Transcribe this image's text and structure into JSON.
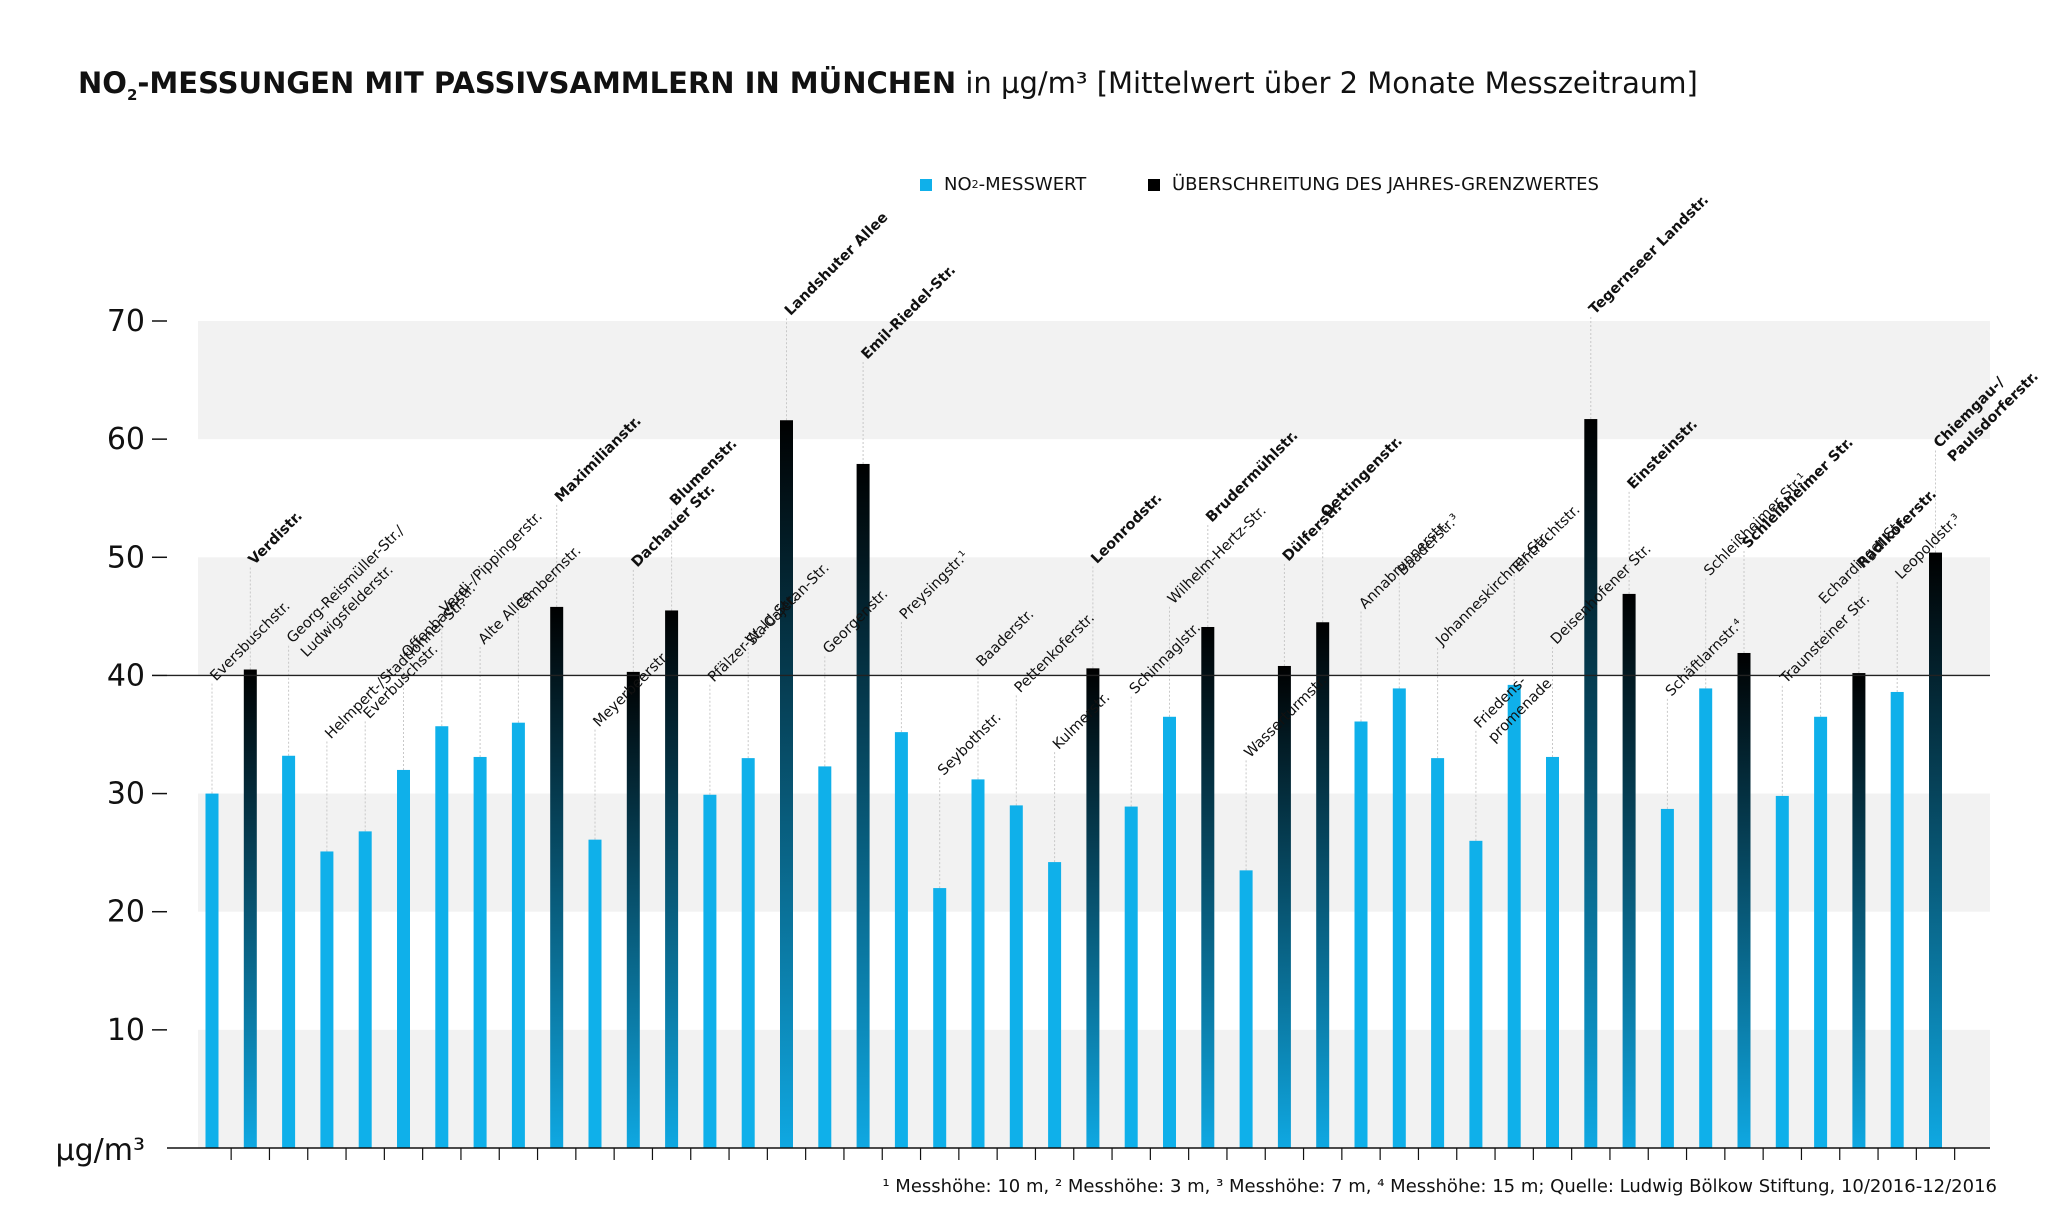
{
  "title": {
    "bold_prefix": "NO",
    "bold_sub": "2",
    "bold_suffix": "-MESSUNGEN MIT PASSIVSAMMLERN IN MÜNCHEN",
    "normal": " in µg/m³ [Mittelwert über 2 Monate Messzeitraum]"
  },
  "legend": {
    "item1_prefix": "NO",
    "item1_sub": "2",
    "item1_suffix": "-MESSWERT",
    "item2": "ÜBERSCHREITUNG DES JAHRES-GRENZWERTES"
  },
  "footnote": "¹ Messhöhe: 10 m, ² Messhöhe: 3 m, ³ Messhöhe: 7 m, ⁴ Messhöhe: 15 m; Quelle: Ludwig Bölkow Stiftung, 10/2016-12/2016",
  "colors": {
    "normal": "#0fb0ea",
    "exceed_top": "#000000",
    "exceed_bottom": "#0fa8e2",
    "grid_band": "#f2f2f2",
    "guide": "#c8c8c8"
  },
  "chart_data": {
    "type": "bar",
    "ylim": [
      0,
      70
    ],
    "yticks": [
      10,
      20,
      30,
      40,
      50,
      60,
      70
    ],
    "ylabel": "µg/m³",
    "limit_line": 40,
    "categories": [
      {
        "label": "Eversbuschstr.",
        "value": 30.0,
        "bold": false,
        "exceed": false
      },
      {
        "label": "Verdistr.",
        "value": 40.5,
        "bold": true,
        "exceed": true
      },
      {
        "label": "Georg-Reismüller-Str./|Ludwigsfelderstr.",
        "value": 33.2,
        "bold": false,
        "exceed": false
      },
      {
        "label": "Helmpert-/Stadtlohner Str.",
        "value": 25.1,
        "bold": false,
        "exceed": false
      },
      {
        "label": "Everbuschstr.",
        "value": 26.8,
        "bold": false,
        "exceed": false
      },
      {
        "label": "Offenbachstr.",
        "value": 32.0,
        "bold": false,
        "exceed": false
      },
      {
        "label": "Verdi-/Pippingerstr.",
        "value": 35.7,
        "bold": false,
        "exceed": false
      },
      {
        "label": "Alte Allee",
        "value": 33.1,
        "bold": false,
        "exceed": false
      },
      {
        "label": "Cimbernstr.",
        "value": 36.0,
        "bold": false,
        "exceed": false
      },
      {
        "label": "Maximilianstr.",
        "value": 45.8,
        "bold": true,
        "exceed": true
      },
      {
        "label": "Meyerbeerstr.",
        "value": 26.1,
        "bold": false,
        "exceed": false
      },
      {
        "label": "Dachauer Str.",
        "value": 40.3,
        "bold": true,
        "exceed": true
      },
      {
        "label": "Blumenstr.",
        "value": 45.5,
        "bold": true,
        "exceed": true
      },
      {
        "label": "Pfälzer-Wald-Str.",
        "value": 29.9,
        "bold": false,
        "exceed": false
      },
      {
        "label": "St.-Cajetan-Str.",
        "value": 33.0,
        "bold": false,
        "exceed": false
      },
      {
        "label": "Landshuter Allee",
        "value": 61.6,
        "bold": true,
        "exceed": true
      },
      {
        "label": "Georgenstr.",
        "value": 32.3,
        "bold": false,
        "exceed": false
      },
      {
        "label": "Emil-Riedel-Str.",
        "value": 57.9,
        "bold": true,
        "exceed": true
      },
      {
        "label": "Preysingstr.¹",
        "value": 35.2,
        "bold": false,
        "exceed": false
      },
      {
        "label": "Seybothstr.",
        "value": 22.0,
        "bold": false,
        "exceed": false
      },
      {
        "label": "Baaderstr.",
        "value": 31.2,
        "bold": false,
        "exceed": false
      },
      {
        "label": "Pettenkoferstr.",
        "value": 29.0,
        "bold": false,
        "exceed": false
      },
      {
        "label": "Kulmerstr.",
        "value": 24.2,
        "bold": false,
        "exceed": false
      },
      {
        "label": "Leonrodstr.",
        "value": 40.6,
        "bold": true,
        "exceed": true
      },
      {
        "label": "Schinnaglstr.",
        "value": 28.9,
        "bold": false,
        "exceed": false
      },
      {
        "label": "Wilhelm-Hertz-Str.",
        "value": 36.5,
        "bold": false,
        "exceed": false
      },
      {
        "label": "Brudermühlstr.",
        "value": 44.1,
        "bold": true,
        "exceed": true
      },
      {
        "label": "Wasserturmstr.",
        "value": 23.5,
        "bold": false,
        "exceed": false
      },
      {
        "label": "Dülferstr.",
        "value": 40.8,
        "bold": true,
        "exceed": true
      },
      {
        "label": "Oettingenstr.",
        "value": 44.5,
        "bold": true,
        "exceed": true
      },
      {
        "label": "Annabrunnerstr.",
        "value": 36.1,
        "bold": false,
        "exceed": false
      },
      {
        "label": "Baaderstr.³",
        "value": 38.9,
        "bold": false,
        "exceed": false
      },
      {
        "label": "Johanneskirchner-Str.",
        "value": 33.0,
        "bold": false,
        "exceed": false
      },
      {
        "label": "Friedens-|promenade",
        "value": 26.0,
        "bold": false,
        "exceed": false
      },
      {
        "label": "Eintrachtstr.",
        "value": 39.2,
        "bold": false,
        "exceed": false
      },
      {
        "label": "Deisenhofener Str.",
        "value": 33.1,
        "bold": false,
        "exceed": false
      },
      {
        "label": "Tegernseer Landstr.",
        "value": 61.7,
        "bold": true,
        "exceed": true
      },
      {
        "label": "Einsteinstr.",
        "value": 46.9,
        "bold": true,
        "exceed": true
      },
      {
        "label": "Schäftlarnstr.⁴",
        "value": 28.7,
        "bold": false,
        "exceed": false
      },
      {
        "label": "Schleißheimer Str.¹",
        "value": 38.9,
        "bold": false,
        "exceed": false
      },
      {
        "label": "Schleißheimer Str.",
        "value": 41.9,
        "bold": true,
        "exceed": true
      },
      {
        "label": "Traunsteiner Str.",
        "value": 29.8,
        "bold": false,
        "exceed": false
      },
      {
        "label": "Echardinger Str.",
        "value": 36.5,
        "bold": false,
        "exceed": false
      },
      {
        "label": "Radlkoferstr.",
        "value": 40.2,
        "bold": true,
        "exceed": true
      },
      {
        "label": "Leopoldstr.³",
        "value": 38.6,
        "bold": false,
        "exceed": false
      },
      {
        "label": "Chiemgau-/|Paulsdorferstr.",
        "value": 50.4,
        "bold": true,
        "exceed": true
      }
    ]
  }
}
